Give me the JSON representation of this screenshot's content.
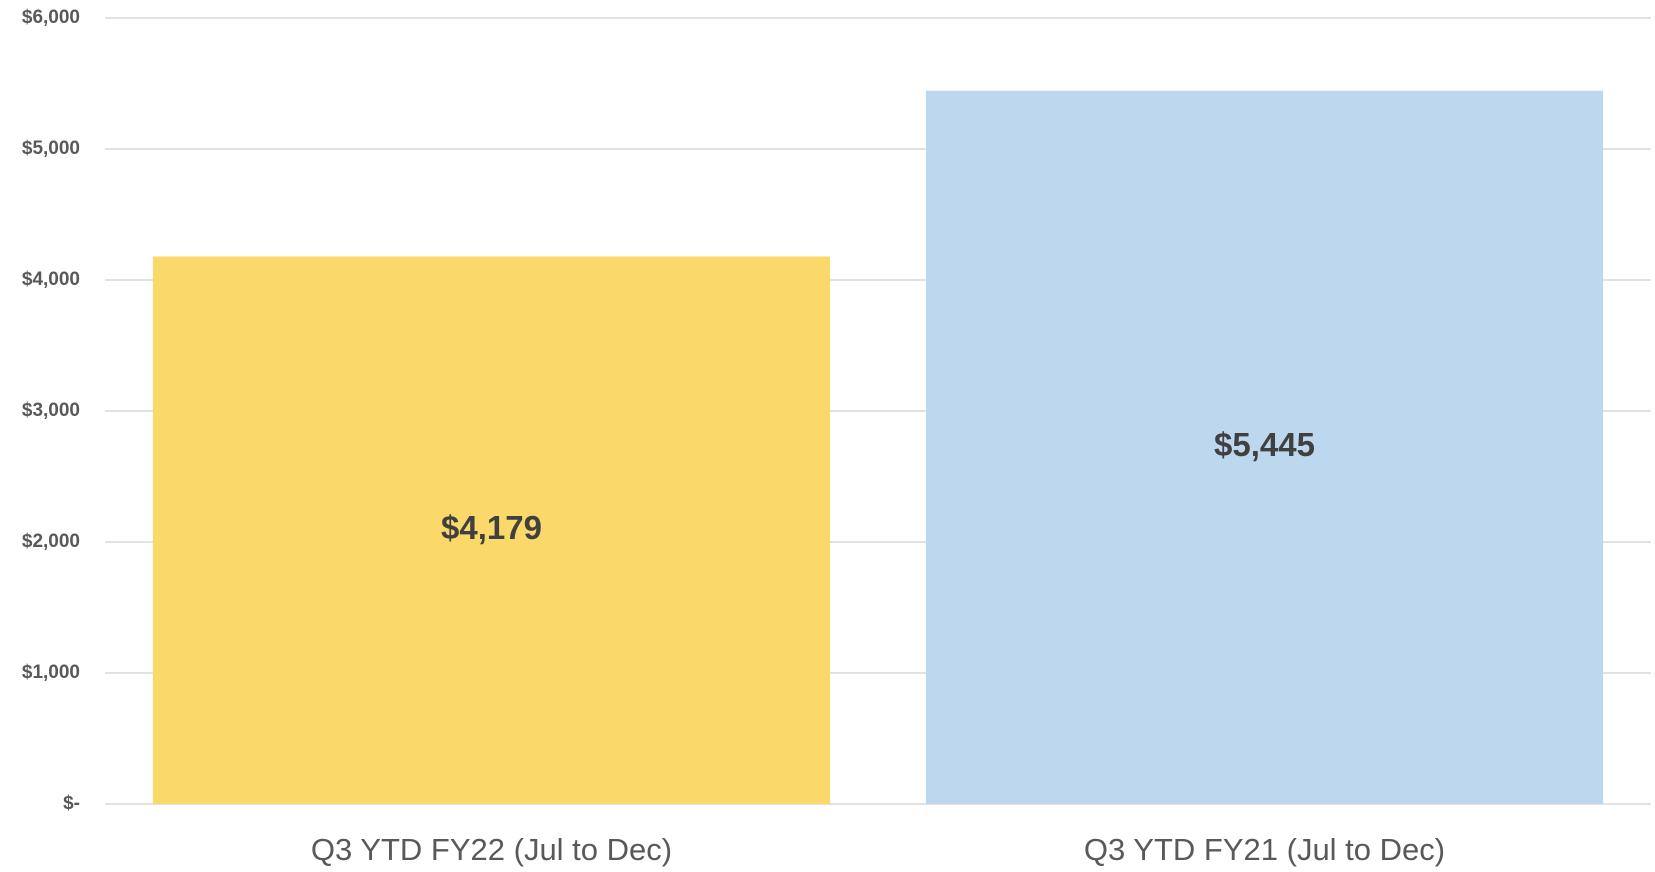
{
  "chart_data": {
    "type": "bar",
    "categories": [
      "Q3 YTD FY22 (Jul to Dec)",
      "Q3 YTD FY21 (Jul to Dec)"
    ],
    "values": [
      4179,
      5445
    ],
    "value_labels": [
      "$4,179",
      "$5,445"
    ],
    "colors": [
      "#fbd86a",
      "#bdd7ee"
    ],
    "ylim": [
      0,
      6000
    ],
    "yticks": [
      {
        "value": 0,
        "label": "$-"
      },
      {
        "value": 1000,
        "label": "$1,000"
      },
      {
        "value": 2000,
        "label": "$2,000"
      },
      {
        "value": 3000,
        "label": "$3,000"
      },
      {
        "value": 4000,
        "label": "$4,000"
      },
      {
        "value": 5000,
        "label": "$5,000"
      },
      {
        "value": 6000,
        "label": "$6,000"
      }
    ],
    "grid": true
  }
}
